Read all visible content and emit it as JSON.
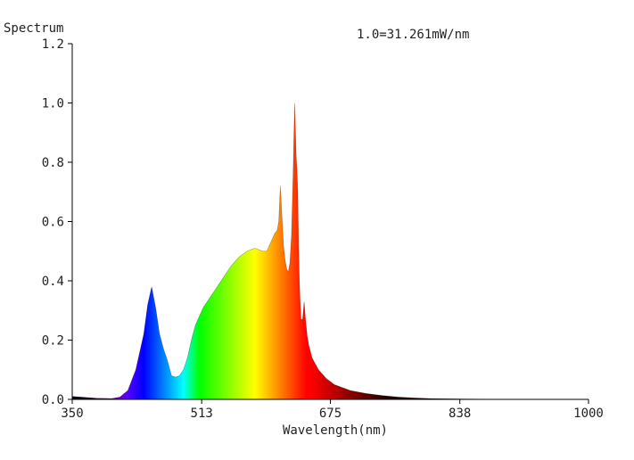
{
  "chart_data": {
    "type": "area",
    "title": "",
    "ylabel": "Spectrum",
    "xlabel": "Wavelength(nm)",
    "annotation": "1.0=31.261mW/nm",
    "xlim": [
      350,
      1000
    ],
    "ylim": [
      0,
      1.2
    ],
    "xticks": [
      350,
      513,
      675,
      838,
      1000
    ],
    "xtick_labels": [
      "350",
      "513",
      "675",
      "838",
      "1000"
    ],
    "yticks": [
      0,
      0.2,
      0.4,
      0.6,
      0.8,
      1.0,
      1.2
    ],
    "ytick_labels": [
      "0.0",
      "0.2",
      "0.4",
      "0.6",
      "0.8",
      "1.0",
      "1.2"
    ],
    "grid": false,
    "fill": "wavelength-color gradient",
    "series": [
      {
        "x": [
          350,
          380,
          400,
          410,
          420,
          430,
          440,
          445,
          450,
          455,
          460,
          465,
          470,
          475,
          480,
          485,
          490,
          495,
          500,
          505,
          510,
          515,
          520,
          525,
          530,
          540,
          550,
          560,
          570,
          580,
          590,
          595,
          600,
          605,
          608,
          610,
          612,
          614,
          616,
          618,
          620,
          622,
          624,
          626,
          628,
          630,
          632,
          633,
          634,
          635,
          636,
          637,
          638,
          640,
          642,
          644,
          646,
          648,
          650,
          652,
          654,
          656,
          660,
          670,
          680,
          690,
          700,
          710,
          720,
          740,
          760,
          780,
          800,
          830,
          860,
          900,
          1000
        ],
        "values": [
          0.01,
          0.004,
          0.003,
          0.008,
          0.03,
          0.1,
          0.22,
          0.32,
          0.38,
          0.31,
          0.22,
          0.17,
          0.13,
          0.08,
          0.075,
          0.08,
          0.1,
          0.14,
          0.2,
          0.25,
          0.28,
          0.31,
          0.33,
          0.35,
          0.37,
          0.41,
          0.45,
          0.48,
          0.5,
          0.51,
          0.5,
          0.5,
          0.53,
          0.56,
          0.57,
          0.6,
          0.72,
          0.62,
          0.52,
          0.47,
          0.44,
          0.43,
          0.46,
          0.55,
          0.75,
          1.0,
          0.82,
          0.77,
          0.7,
          0.52,
          0.4,
          0.33,
          0.27,
          0.27,
          0.33,
          0.26,
          0.21,
          0.18,
          0.16,
          0.14,
          0.13,
          0.12,
          0.1,
          0.07,
          0.05,
          0.04,
          0.03,
          0.025,
          0.02,
          0.013,
          0.008,
          0.005,
          0.003,
          0.002,
          0.001,
          0.0,
          0.0
        ]
      }
    ]
  }
}
